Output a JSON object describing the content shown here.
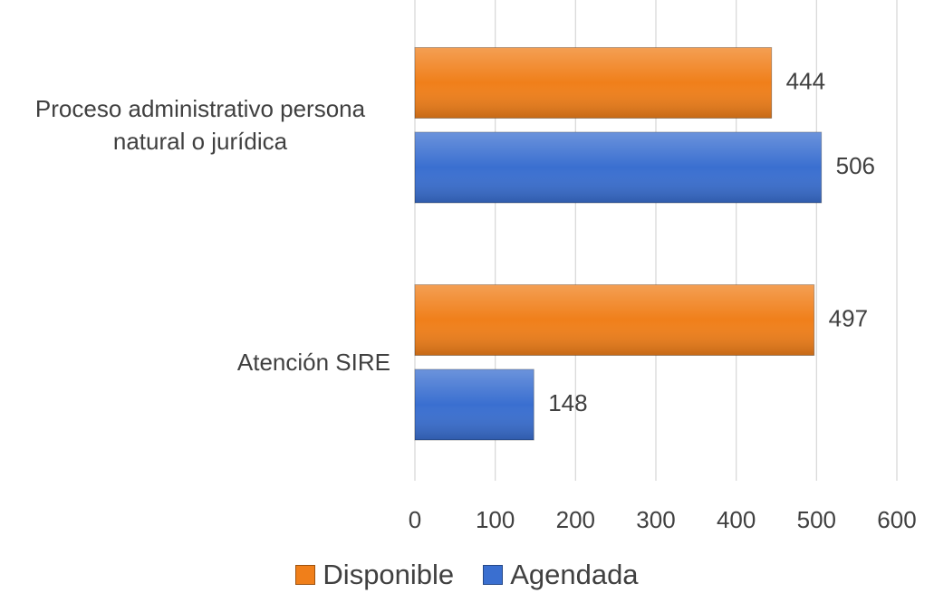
{
  "chart_data": {
    "type": "hbar",
    "categories": [
      "Proceso administrativo persona natural o jurídica",
      "Atención SIRE"
    ],
    "series": [
      {
        "name": "Disponible",
        "color": "#f07f1a",
        "values": [
          444,
          497
        ]
      },
      {
        "name": "Agendada",
        "color": "#3a6fd0",
        "values": [
          506,
          148
        ]
      }
    ],
    "xlim": [
      0,
      600
    ],
    "xticks": [
      0,
      100,
      200,
      300,
      400,
      500,
      600
    ],
    "grid": true
  }
}
